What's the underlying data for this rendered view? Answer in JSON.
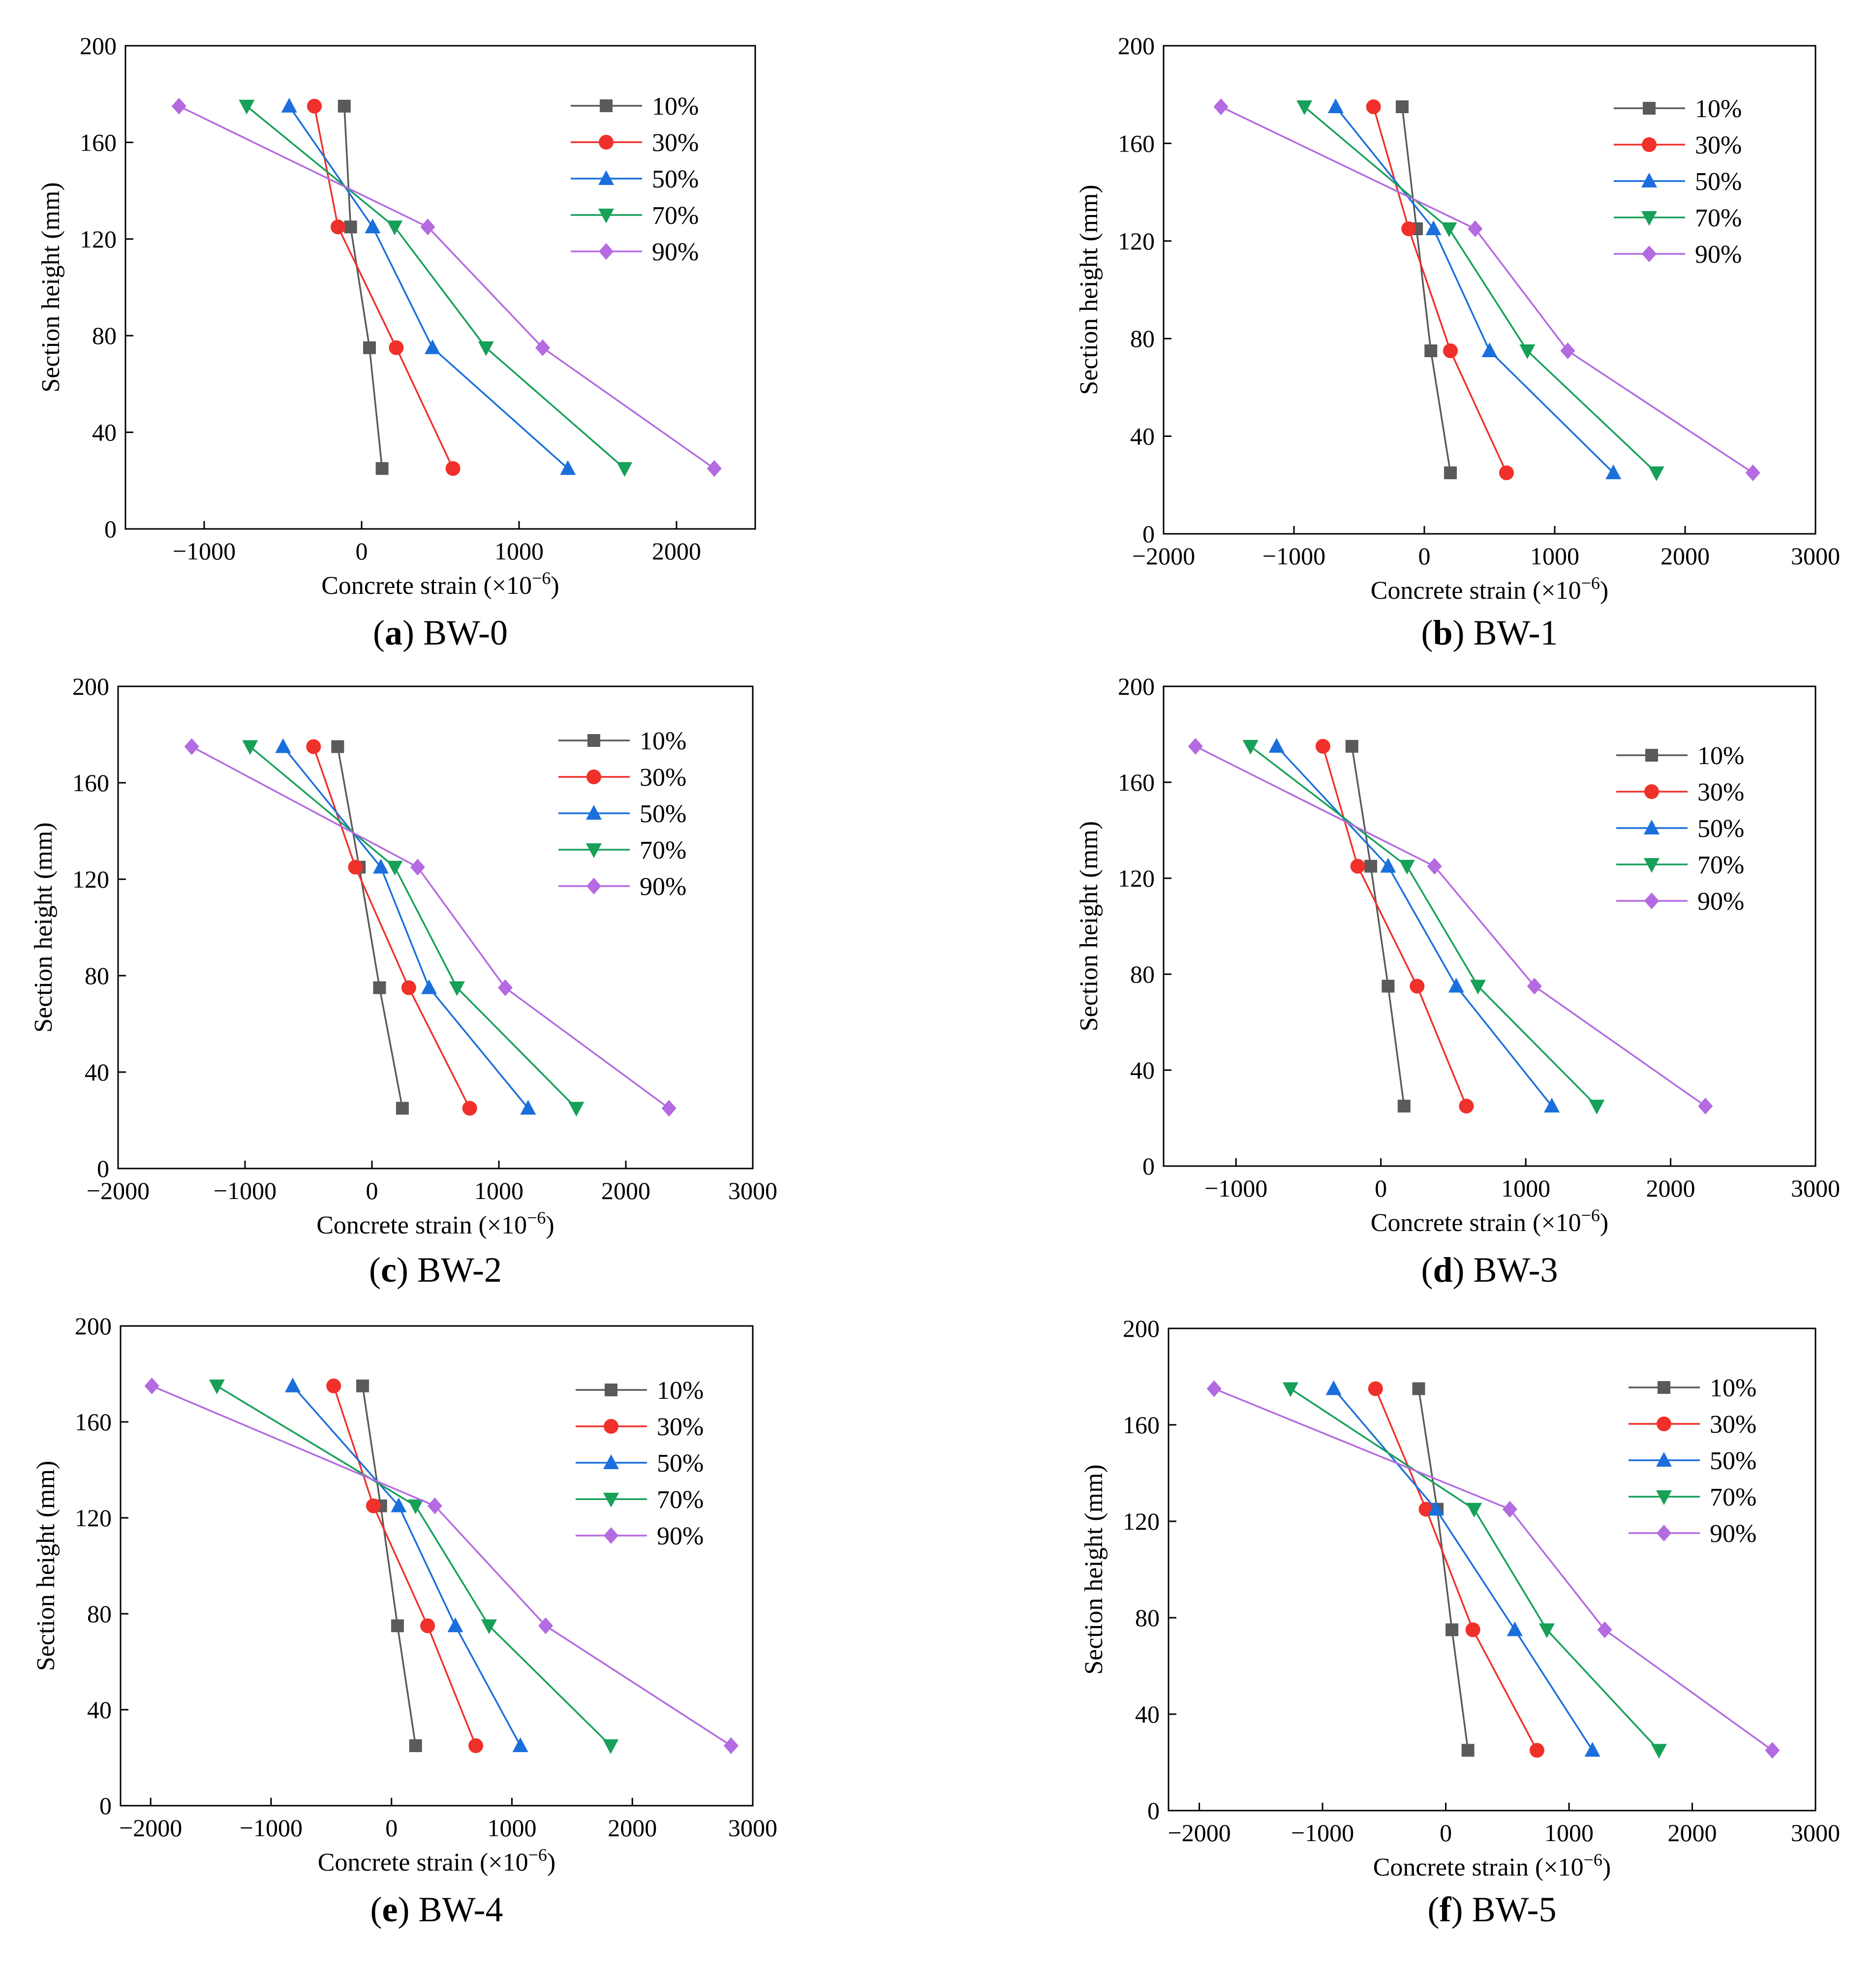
{
  "figure": {
    "x_label_main": "Concrete strain (×10",
    "x_label_exp": "−6",
    "x_label_close": ")",
    "y_label": "Section height (mm)"
  },
  "colors": {
    "10%": "#5a5a5a",
    "30%": "#f0302a",
    "50%": "#1a6fdc",
    "70%": "#16a058",
    "90%": "#b46ae0"
  },
  "chart_data": [
    {
      "type": "line",
      "panel_letter": "a",
      "panel_name": "BW-0",
      "xlim": [
        -1500,
        2500
      ],
      "ylim": [
        0,
        200
      ],
      "xticks": [
        -1000,
        0,
        1000,
        2000
      ],
      "yticks": [
        0,
        40,
        80,
        120,
        160,
        200
      ],
      "grid": false,
      "legend_placement": "top-right",
      "y": [
        175,
        125,
        75,
        25
      ],
      "series": [
        {
          "name": "10%",
          "marker": "square",
          "x": [
            -110,
            -70,
            50,
            130
          ]
        },
        {
          "name": "30%",
          "marker": "circle",
          "x": [
            -300,
            -150,
            220,
            580
          ]
        },
        {
          "name": "50%",
          "marker": "triangle-up",
          "x": [
            -460,
            70,
            450,
            1310
          ]
        },
        {
          "name": "70%",
          "marker": "triangle-down",
          "x": [
            -730,
            210,
            790,
            1670
          ]
        },
        {
          "name": "90%",
          "marker": "diamond",
          "x": [
            -1160,
            420,
            1150,
            2240
          ]
        }
      ]
    },
    {
      "type": "line",
      "panel_letter": "b",
      "panel_name": "BW-1",
      "xlim": [
        -2000,
        3000
      ],
      "ylim": [
        0,
        200
      ],
      "xticks": [
        -2000,
        -1000,
        0,
        1000,
        2000,
        3000
      ],
      "yticks": [
        0,
        40,
        80,
        120,
        160,
        200
      ],
      "grid": false,
      "legend_placement": "top-right",
      "y": [
        175,
        125,
        75,
        25
      ],
      "series": [
        {
          "name": "10%",
          "marker": "square",
          "x": [
            -170,
            -60,
            50,
            200
          ]
        },
        {
          "name": "30%",
          "marker": "circle",
          "x": [
            -390,
            -120,
            200,
            630
          ]
        },
        {
          "name": "50%",
          "marker": "triangle-up",
          "x": [
            -680,
            70,
            500,
            1450
          ]
        },
        {
          "name": "70%",
          "marker": "triangle-down",
          "x": [
            -920,
            190,
            790,
            1780
          ]
        },
        {
          "name": "90%",
          "marker": "diamond",
          "x": [
            -1560,
            390,
            1100,
            2520
          ]
        }
      ]
    },
    {
      "type": "line",
      "panel_letter": "c",
      "panel_name": "BW-2",
      "xlim": [
        -2000,
        3000
      ],
      "ylim": [
        0,
        200
      ],
      "xticks": [
        -2000,
        -1000,
        0,
        1000,
        2000,
        3000
      ],
      "yticks": [
        0,
        40,
        80,
        120,
        160,
        200
      ],
      "grid": false,
      "legend_placement": "top-right",
      "y": [
        175,
        125,
        75,
        25
      ],
      "series": [
        {
          "name": "10%",
          "marker": "square",
          "x": [
            -270,
            -100,
            60,
            240
          ]
        },
        {
          "name": "30%",
          "marker": "circle",
          "x": [
            -460,
            -130,
            290,
            770
          ]
        },
        {
          "name": "50%",
          "marker": "triangle-up",
          "x": [
            -700,
            70,
            450,
            1230
          ]
        },
        {
          "name": "70%",
          "marker": "triangle-down",
          "x": [
            -960,
            180,
            670,
            1610
          ]
        },
        {
          "name": "90%",
          "marker": "diamond",
          "x": [
            -1420,
            360,
            1050,
            2340
          ]
        }
      ]
    },
    {
      "type": "line",
      "panel_letter": "d",
      "panel_name": "BW-3",
      "xlim": [
        -1500,
        3000
      ],
      "ylim": [
        0,
        200
      ],
      "xticks": [
        -1000,
        0,
        1000,
        2000,
        3000
      ],
      "yticks": [
        0,
        40,
        80,
        120,
        160,
        200
      ],
      "grid": false,
      "legend_placement": "top-right",
      "y": [
        175,
        125,
        75,
        25
      ],
      "series": [
        {
          "name": "10%",
          "marker": "square",
          "x": [
            -200,
            -70,
            50,
            160
          ]
        },
        {
          "name": "30%",
          "marker": "circle",
          "x": [
            -400,
            -160,
            250,
            590
          ]
        },
        {
          "name": "50%",
          "marker": "triangle-up",
          "x": [
            -720,
            50,
            520,
            1180
          ]
        },
        {
          "name": "70%",
          "marker": "triangle-down",
          "x": [
            -900,
            180,
            670,
            1490
          ]
        },
        {
          "name": "90%",
          "marker": "diamond",
          "x": [
            -1280,
            370,
            1060,
            2240
          ]
        }
      ]
    },
    {
      "type": "line",
      "panel_letter": "e",
      "panel_name": "BW-4",
      "xlim": [
        -2250,
        3000
      ],
      "ylim": [
        0,
        200
      ],
      "xticks": [
        -2000,
        -1000,
        0,
        1000,
        2000,
        3000
      ],
      "yticks": [
        0,
        40,
        80,
        120,
        160,
        200
      ],
      "grid": false,
      "legend_placement": "top-right",
      "y": [
        175,
        125,
        75,
        25
      ],
      "series": [
        {
          "name": "10%",
          "marker": "square",
          "x": [
            -240,
            -90,
            50,
            200
          ]
        },
        {
          "name": "30%",
          "marker": "circle",
          "x": [
            -480,
            -150,
            300,
            700
          ]
        },
        {
          "name": "50%",
          "marker": "triangle-up",
          "x": [
            -820,
            60,
            530,
            1070
          ]
        },
        {
          "name": "70%",
          "marker": "triangle-down",
          "x": [
            -1450,
            200,
            810,
            1820
          ]
        },
        {
          "name": "90%",
          "marker": "diamond",
          "x": [
            -1990,
            360,
            1280,
            2820
          ]
        }
      ]
    },
    {
      "type": "line",
      "panel_letter": "f",
      "panel_name": "BW-5",
      "xlim": [
        -2250,
        3000
      ],
      "ylim": [
        0,
        200
      ],
      "xticks": [
        -2000,
        -1000,
        0,
        1000,
        2000,
        3000
      ],
      "yticks": [
        0,
        40,
        80,
        120,
        160,
        200
      ],
      "grid": false,
      "legend_placement": "top-right",
      "y": [
        175,
        125,
        75,
        25
      ],
      "series": [
        {
          "name": "10%",
          "marker": "square",
          "x": [
            -220,
            -70,
            50,
            180
          ]
        },
        {
          "name": "30%",
          "marker": "circle",
          "x": [
            -570,
            -160,
            220,
            740
          ]
        },
        {
          "name": "50%",
          "marker": "triangle-up",
          "x": [
            -910,
            -80,
            560,
            1190
          ]
        },
        {
          "name": "70%",
          "marker": "triangle-down",
          "x": [
            -1260,
            230,
            820,
            1730
          ]
        },
        {
          "name": "90%",
          "marker": "diamond",
          "x": [
            -1880,
            520,
            1290,
            2650
          ]
        }
      ]
    }
  ]
}
